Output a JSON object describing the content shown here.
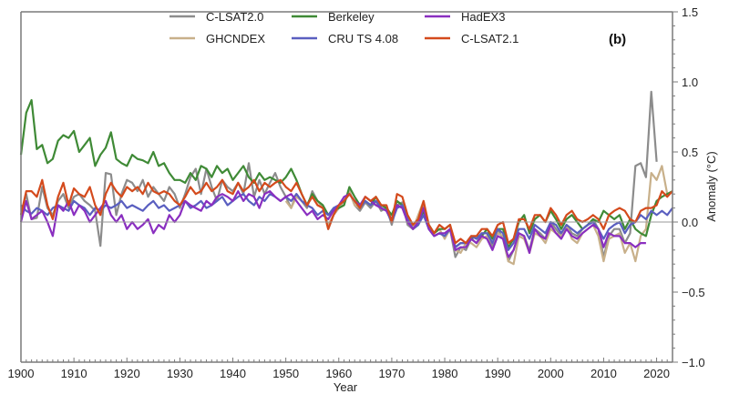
{
  "chart_data": {
    "type": "line",
    "title": "",
    "panel_label": "(b)",
    "xlabel": "Year",
    "ylabel": "Anomaly (°C)",
    "xlim": [
      1900,
      2023
    ],
    "ylim": [
      -1.0,
      1.5
    ],
    "x_ticks": [
      1900,
      1910,
      1920,
      1930,
      1940,
      1950,
      1960,
      1970,
      1980,
      1990,
      2000,
      2010,
      2020
    ],
    "x_tick_labels": [
      "1900",
      "1910",
      "1920",
      "1930",
      "1940",
      "1950",
      "1960",
      "1970",
      "1980",
      "1990",
      "2000",
      "2010",
      "2020"
    ],
    "y_ticks": [
      1.5,
      1.0,
      0.5,
      0.0,
      -0.5,
      -1.0
    ],
    "y_tick_labels": [
      "1.5",
      "1.0",
      "0.5",
      "0.0",
      "−0.5",
      "−1.0"
    ],
    "legend_placement": "top-center",
    "grid": false,
    "zero_line": true,
    "series": [
      {
        "name": "C-LSAT2.0",
        "color": "#8c8c8c",
        "start": 1900,
        "values": [
          0.05,
          0.2,
          0.02,
          0.03,
          0.25,
          0.1,
          0.05,
          0.15,
          0.2,
          0.1,
          0.18,
          0.2,
          0.15,
          0.12,
          0.08,
          -0.17,
          0.35,
          0.34,
          0.05,
          0.2,
          0.3,
          0.28,
          0.22,
          0.3,
          0.18,
          0.25,
          0.2,
          0.15,
          0.25,
          0.2,
          0.1,
          0.2,
          0.32,
          0.38,
          0.2,
          0.38,
          0.25,
          0.15,
          0.3,
          0.25,
          0.22,
          0.28,
          0.2,
          0.42,
          0.18,
          0.3,
          0.2,
          0.28,
          0.35,
          0.25,
          0.18,
          0.1,
          0.2,
          0.15,
          0.1,
          0.22,
          0.15,
          0.12,
          -0.05,
          0.05,
          0.1,
          0.15,
          0.22,
          0.12,
          0.08,
          0.14,
          0.1,
          0.15,
          0.08,
          0.1,
          -0.02,
          0.12,
          0.14,
          -0.02,
          -0.05,
          0.02,
          0.12,
          -0.05,
          -0.1,
          -0.08,
          -0.1,
          -0.05,
          -0.25,
          -0.18,
          -0.2,
          -0.12,
          -0.15,
          -0.08,
          -0.08,
          -0.18,
          -0.05,
          -0.12,
          -0.28,
          -0.2,
          -0.08,
          -0.1,
          -0.2,
          -0.05,
          -0.08,
          -0.12,
          0.0,
          -0.05,
          -0.1,
          -0.02,
          -0.08,
          -0.1,
          -0.05,
          -0.02,
          0.02,
          -0.05,
          -0.25,
          -0.1,
          -0.05,
          -0.05,
          -0.15,
          -0.08,
          0.4,
          0.42,
          0.32,
          0.93,
          0.43
        ]
      },
      {
        "name": "GHCNDEX",
        "color": "#c8b08a",
        "start": 1950,
        "values": [
          0.15,
          0.1,
          0.18,
          0.15,
          0.12,
          0.2,
          0.15,
          0.1,
          -0.02,
          0.05,
          0.1,
          0.15,
          0.22,
          0.12,
          0.1,
          0.15,
          0.12,
          0.18,
          0.1,
          0.08,
          0.0,
          0.1,
          0.12,
          0.0,
          -0.05,
          0.05,
          0.15,
          -0.05,
          -0.08,
          -0.05,
          -0.12,
          -0.05,
          -0.2,
          -0.22,
          -0.15,
          -0.15,
          -0.18,
          -0.12,
          -0.1,
          -0.15,
          -0.08,
          -0.1,
          -0.28,
          -0.3,
          -0.1,
          -0.12,
          -0.22,
          -0.08,
          -0.1,
          -0.15,
          -0.05,
          -0.08,
          -0.1,
          -0.02,
          -0.12,
          -0.15,
          -0.08,
          -0.05,
          -0.02,
          -0.1,
          -0.28,
          -0.12,
          -0.1,
          -0.08,
          -0.22,
          -0.15,
          -0.28,
          -0.1,
          -0.05,
          0.35,
          0.3,
          0.4,
          0.2
        ]
      },
      {
        "name": "Berkeley",
        "color": "#3f8a36",
        "start": 1900,
        "values": [
          0.48,
          0.78,
          0.87,
          0.52,
          0.55,
          0.42,
          0.45,
          0.58,
          0.62,
          0.6,
          0.65,
          0.5,
          0.55,
          0.6,
          0.4,
          0.48,
          0.53,
          0.64,
          0.45,
          0.42,
          0.4,
          0.48,
          0.45,
          0.44,
          0.42,
          0.5,
          0.4,
          0.42,
          0.35,
          0.3,
          0.3,
          0.28,
          0.35,
          0.3,
          0.4,
          0.38,
          0.32,
          0.4,
          0.35,
          0.38,
          0.3,
          0.35,
          0.4,
          0.32,
          0.28,
          0.35,
          0.3,
          0.32,
          0.3,
          0.28,
          0.32,
          0.38,
          0.3,
          0.2,
          0.12,
          0.2,
          0.15,
          0.12,
          0.05,
          0.08,
          0.1,
          0.12,
          0.25,
          0.18,
          0.12,
          0.15,
          0.12,
          0.18,
          0.12,
          0.1,
          0.05,
          0.15,
          0.12,
          0.02,
          -0.05,
          -0.02,
          0.08,
          -0.02,
          -0.08,
          -0.05,
          -0.05,
          -0.02,
          -0.18,
          -0.15,
          -0.15,
          -0.12,
          -0.1,
          -0.1,
          -0.05,
          -0.12,
          -0.05,
          -0.05,
          -0.18,
          -0.12,
          0.0,
          0.05,
          -0.08,
          0.02,
          0.05,
          0.0,
          0.08,
          0.02,
          -0.05,
          0.02,
          0.05,
          0.0,
          -0.05,
          -0.02,
          0.02,
          0.0,
          0.08,
          0.05,
          0.02,
          0.05,
          -0.05,
          0.02,
          -0.05,
          -0.08,
          -0.1,
          0.05,
          0.15,
          0.18,
          0.2,
          0.22
        ]
      },
      {
        "name": "CRU TS 4.08",
        "color": "#5a5fc0",
        "start": 1900,
        "values": [
          0.12,
          0.08,
          0.06,
          0.1,
          0.08,
          0.05,
          0.1,
          0.12,
          0.1,
          0.08,
          0.15,
          0.12,
          0.1,
          0.05,
          0.1,
          0.08,
          0.12,
          0.1,
          0.12,
          0.15,
          0.1,
          0.12,
          0.1,
          0.08,
          0.12,
          0.15,
          0.1,
          0.12,
          0.08,
          0.1,
          0.12,
          0.15,
          0.1,
          0.12,
          0.15,
          0.1,
          0.12,
          0.15,
          0.18,
          0.12,
          0.15,
          0.18,
          0.2,
          0.15,
          0.12,
          0.18,
          0.15,
          0.2,
          0.18,
          0.15,
          0.18,
          0.15,
          0.2,
          0.15,
          0.12,
          0.1,
          0.05,
          0.08,
          0.05,
          0.1,
          0.12,
          0.15,
          0.2,
          0.15,
          0.1,
          0.15,
          0.12,
          0.15,
          0.1,
          0.08,
          0.0,
          0.1,
          0.12,
          0.02,
          -0.05,
          -0.02,
          0.05,
          -0.05,
          -0.1,
          -0.08,
          -0.1,
          -0.05,
          -0.18,
          -0.15,
          -0.15,
          -0.1,
          -0.12,
          -0.08,
          -0.08,
          -0.15,
          -0.05,
          -0.08,
          -0.2,
          -0.15,
          -0.05,
          -0.05,
          -0.12,
          -0.02,
          -0.05,
          -0.08,
          0.0,
          -0.02,
          -0.08,
          -0.02,
          -0.05,
          -0.08,
          -0.05,
          -0.02,
          0.0,
          -0.05,
          -0.12,
          -0.05,
          -0.02,
          0.0,
          -0.08,
          -0.02,
          0.0,
          0.05,
          0.02,
          0.08,
          0.05,
          0.08,
          0.05,
          0.1
        ]
      },
      {
        "name": "HadEX3",
        "color": "#8a2fc0",
        "start": 1900,
        "values": [
          0.0,
          0.15,
          0.02,
          0.05,
          0.08,
          0.0,
          -0.1,
          0.12,
          0.08,
          0.15,
          0.05,
          0.12,
          0.08,
          0.0,
          0.05,
          0.1,
          0.15,
          0.05,
          0.0,
          0.05,
          -0.05,
          0.0,
          -0.05,
          -0.02,
          0.02,
          -0.08,
          -0.02,
          -0.05,
          0.05,
          0.0,
          0.05,
          0.15,
          0.12,
          0.1,
          0.08,
          0.15,
          0.12,
          0.18,
          0.2,
          0.18,
          0.15,
          0.22,
          0.15,
          0.2,
          0.18,
          0.1,
          0.2,
          0.22,
          0.18,
          0.15,
          0.18,
          0.2,
          0.15,
          0.1,
          0.05,
          0.08,
          0.02,
          0.05,
          0.02,
          0.08,
          0.12,
          0.18,
          0.2,
          0.15,
          0.12,
          0.18,
          0.15,
          0.12,
          0.1,
          0.08,
          0.02,
          0.12,
          0.1,
          0.0,
          -0.05,
          0.0,
          0.1,
          -0.05,
          -0.1,
          -0.08,
          -0.08,
          -0.05,
          -0.2,
          -0.18,
          -0.18,
          -0.12,
          -0.15,
          -0.1,
          -0.12,
          -0.2,
          -0.1,
          -0.12,
          -0.25,
          -0.2,
          -0.08,
          -0.1,
          -0.22,
          -0.05,
          -0.1,
          -0.12,
          -0.02,
          -0.08,
          -0.12,
          -0.05,
          -0.1,
          -0.12,
          -0.08,
          -0.05,
          -0.02,
          -0.05,
          -0.18,
          -0.08,
          -0.1,
          -0.1,
          -0.15,
          -0.15,
          -0.18,
          -0.15,
          -0.15
        ]
      },
      {
        "name": "C-LSAT2.1",
        "color": "#d44a1c",
        "start": 1900,
        "values": [
          0.05,
          0.22,
          0.22,
          0.18,
          0.3,
          0.12,
          0.02,
          0.18,
          0.28,
          0.12,
          0.24,
          0.2,
          0.18,
          0.25,
          0.12,
          0.05,
          0.2,
          0.28,
          0.22,
          0.18,
          0.25,
          0.22,
          0.25,
          0.2,
          0.28,
          0.22,
          0.2,
          0.22,
          0.2,
          0.15,
          0.12,
          0.18,
          0.25,
          0.2,
          0.22,
          0.28,
          0.22,
          0.25,
          0.3,
          0.22,
          0.2,
          0.28,
          0.22,
          0.25,
          0.3,
          0.22,
          0.28,
          0.25,
          0.28,
          0.3,
          0.25,
          0.22,
          0.28,
          0.2,
          0.12,
          0.18,
          0.12,
          0.1,
          -0.05,
          0.05,
          0.12,
          0.15,
          0.2,
          0.15,
          0.1,
          0.18,
          0.15,
          0.18,
          0.12,
          0.12,
          0.0,
          0.2,
          0.18,
          0.05,
          -0.02,
          0.02,
          0.15,
          -0.02,
          -0.08,
          -0.02,
          -0.05,
          -0.02,
          -0.15,
          -0.12,
          -0.15,
          -0.1,
          -0.1,
          -0.05,
          -0.05,
          -0.1,
          -0.02,
          0.0,
          -0.15,
          -0.12,
          0.02,
          0.02,
          -0.05,
          0.05,
          0.05,
          0.0,
          0.1,
          0.05,
          -0.02,
          0.05,
          0.08,
          0.02,
          0.0,
          0.02,
          0.05,
          0.02,
          -0.05,
          0.05,
          0.08,
          0.1,
          0.08,
          0.02,
          0.0,
          0.08,
          0.1,
          0.1,
          0.12,
          0.22,
          0.18,
          0.22
        ]
      }
    ]
  }
}
